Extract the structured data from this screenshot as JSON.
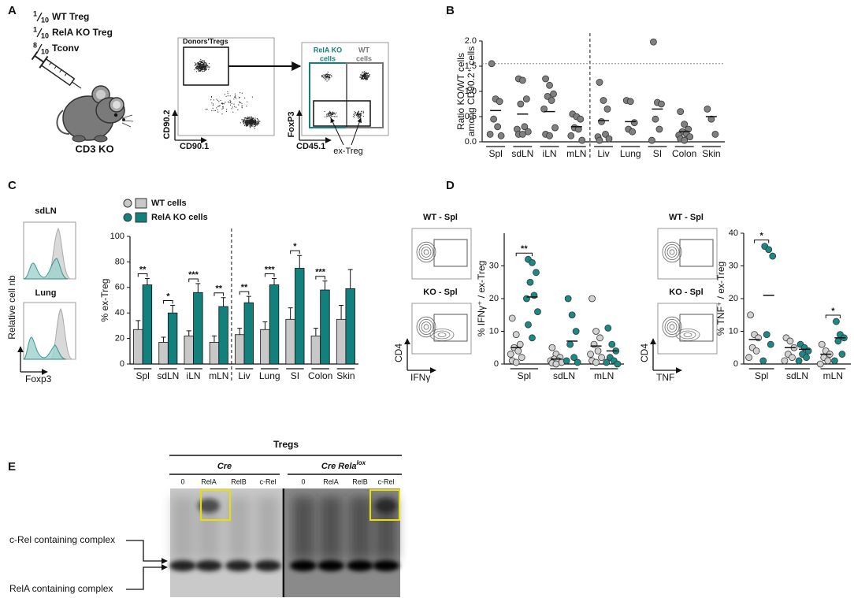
{
  "panels": [
    "A",
    "B",
    "C",
    "D",
    "E"
  ],
  "panel_a": {
    "doses": [
      {
        "num": "1",
        "den": "10",
        "label": "WT Treg"
      },
      {
        "num": "1",
        "den": "10",
        "label": "RelA KO Treg"
      },
      {
        "num": "8",
        "den": "10",
        "label": "Tconv"
      }
    ],
    "mouse": "CD3 KO",
    "plot1": {
      "gate": "Donors'Tregs",
      "y_axis": "CD90.2",
      "x_axis": "CD90.1"
    },
    "plot2": {
      "gate_ko": [
        "RelA KO",
        "cells"
      ],
      "gate_wt": [
        "WT",
        "cells"
      ],
      "y_axis": "FoxP3",
      "x_axis": "CD45.1",
      "ex_treg": "ex-Treg"
    }
  },
  "panel_c_histograms": {
    "tissues": [
      "sdLN",
      "Lung"
    ],
    "y_axis": "Relative cell nb",
    "x_axis": "Foxp3"
  },
  "panel_d_flow": {
    "left": {
      "plots": [
        "WT - Spl",
        "KO - Spl"
      ],
      "y_axis": "CD4",
      "x_axis": "IFNγ"
    },
    "right": {
      "plots": [
        "WT - Spl",
        "KO - Spl"
      ],
      "y_axis": "CD4",
      "x_axis": "TNF"
    }
  },
  "panel_e": {
    "title": "Tregs",
    "groups": [
      {
        "text": "Cre"
      },
      {
        "text": "Cre Rela",
        "sup": "lox"
      }
    ],
    "lanes": [
      [
        "0",
        "RelA",
        "RelB",
        "c-Rel"
      ],
      [
        "0",
        "RelA",
        "RelB",
        "c-Rel"
      ]
    ],
    "complexes": [
      "c-Rel containing complex",
      "RelA containing complex"
    ]
  },
  "chart_data": [
    {
      "type": "dot",
      "ylabel": [
        "Ratio KO/WT cells",
        "among CD90.2⁺ cells"
      ],
      "categories": [
        "Spl",
        "sdLN",
        "iLN",
        "mLN",
        "Liv",
        "Lung",
        "SI",
        "Colon",
        "Skin"
      ],
      "series": [
        {
          "color": "#808080",
          "values": [
            [
              1.55,
              0.85,
              0.8,
              0.45,
              0.3,
              0.15,
              0.12
            ],
            [
              1.25,
              1.22,
              0.85,
              0.75,
              0.3,
              0.25,
              0.2,
              0.15,
              0.15
            ],
            [
              1.25,
              1.12,
              0.95,
              0.9,
              0.82,
              0.65,
              0.28,
              0.15,
              0.12
            ],
            [
              0.55,
              0.5,
              0.45,
              0.28,
              0.25,
              0.12,
              0.03
            ],
            [
              1.18,
              0.82,
              0.65,
              0.4,
              0.15,
              0.1,
              0.06,
              0.03
            ],
            [
              0.82,
              0.8,
              0.38,
              0.25,
              0.2
            ],
            [
              1.98,
              0.78,
              0.75,
              0.45,
              0.25,
              0.03
            ],
            [
              0.6,
              0.35,
              0.25,
              0.2,
              0.16,
              0.13,
              0.1,
              0.06,
              0.03
            ],
            [
              0.65,
              0.45,
              0.15
            ]
          ],
          "means": [
            0.62,
            0.55,
            0.6,
            0.3,
            0.42,
            0.4,
            0.65,
            0.2,
            0.5
          ]
        }
      ],
      "ylim": [
        0,
        2.0
      ],
      "yticks": [
        {
          "value": 0,
          "label": "0.0"
        },
        {
          "value": 0.5,
          "label": "0.5"
        },
        {
          "value": 1,
          "label": "1.0"
        },
        {
          "value": 1.5,
          "label": "1.5"
        },
        {
          "value": 2,
          "label": "2.0"
        }
      ],
      "reference_line": 1.55,
      "divider_after": 3
    },
    {
      "type": "bar",
      "ylabel": "% ex-Treg",
      "categories": [
        "Spl",
        "sdLN",
        "iLN",
        "mLN",
        "Liv",
        "Lung",
        "SI",
        "Colon",
        "Skin"
      ],
      "series": [
        {
          "name": "WT cells",
          "color": "#c8c8c8",
          "values": [
            27,
            17,
            22,
            17,
            23,
            27,
            35,
            22,
            35
          ],
          "errors": [
            7,
            4,
            4,
            5,
            5,
            6,
            9,
            6,
            11
          ]
        },
        {
          "name": "RelA KO cells",
          "color": "#12807d",
          "values": [
            62,
            40,
            56,
            45,
            48,
            62,
            75,
            58,
            59
          ],
          "errors": [
            5,
            6,
            7,
            7,
            5,
            5,
            10,
            7,
            15
          ]
        }
      ],
      "ylim": [
        0,
        100
      ],
      "yticks": [
        0,
        20,
        40,
        60,
        80,
        100
      ],
      "significance": [
        {
          "category": "Spl",
          "label": "**"
        },
        {
          "category": "sdLN",
          "label": "*"
        },
        {
          "category": "iLN",
          "label": "***"
        },
        {
          "category": "mLN",
          "label": "**"
        },
        {
          "category": "Liv",
          "label": "**"
        },
        {
          "category": "Lung",
          "label": "***"
        },
        {
          "category": "SI",
          "label": "*"
        },
        {
          "category": "Colon",
          "label": "***"
        }
      ],
      "divider_after": 3
    },
    {
      "type": "dot",
      "ylabel": "% IFNγ⁺ / ex-Treg",
      "categories": [
        "Spl",
        "sdLN",
        "mLN"
      ],
      "series": [
        {
          "color": "#d2d2d2",
          "values": [
            [
              14,
              9,
              6,
              5,
              4,
              3,
              2,
              1,
              0.5
            ],
            [
              5,
              3,
              2,
              1.5,
              1,
              1,
              0.5,
              0.3,
              0
            ],
            [
              20,
              10,
              8,
              6,
              4,
              3,
              2,
              1,
              0.5
            ]
          ],
          "means": [
            5,
            1.5,
            5.5
          ]
        },
        {
          "color": "#1a8a86",
          "values": [
            [
              32,
              31,
              28,
              25,
              21,
              20,
              16,
              12,
              8
            ],
            [
              20,
              15,
              10,
              6,
              2,
              1,
              0.5
            ],
            [
              11,
              6,
              4,
              2,
              1,
              0.5,
              0
            ]
          ],
          "means": [
            20.5,
            7,
            4
          ]
        }
      ],
      "ylim": [
        0,
        40
      ],
      "yticks": [
        0,
        10,
        20,
        30
      ],
      "significance": [
        {
          "category": "Spl",
          "label": "**"
        }
      ]
    },
    {
      "type": "dot",
      "ylabel": "% TNF⁺ / ex-Treg",
      "categories": [
        "Spl",
        "sdLN",
        "mLN"
      ],
      "series": [
        {
          "color": "#d2d2d2",
          "values": [
            [
              15,
              9,
              8,
              5,
              4,
              2
            ],
            [
              8,
              7,
              5,
              3,
              2,
              1
            ],
            [
              6,
              4,
              3,
              2,
              1,
              0
            ]
          ],
          "means": [
            7.5,
            5,
            3
          ]
        },
        {
          "color": "#1a8a86",
          "values": [
            [
              36,
              35,
              33,
              9,
              6,
              1
            ],
            [
              6,
              5,
              4,
              3,
              2,
              1
            ],
            [
              13,
              9,
              8,
              7,
              3,
              1
            ]
          ],
          "means": [
            21,
            4.5,
            8
          ]
        }
      ],
      "ylim": [
        0,
        40
      ],
      "yticks": [
        0,
        10,
        20,
        30,
        40
      ],
      "significance": [
        {
          "category": "Spl",
          "label": "*"
        },
        {
          "category": "mLN",
          "label": "*"
        }
      ]
    }
  ]
}
